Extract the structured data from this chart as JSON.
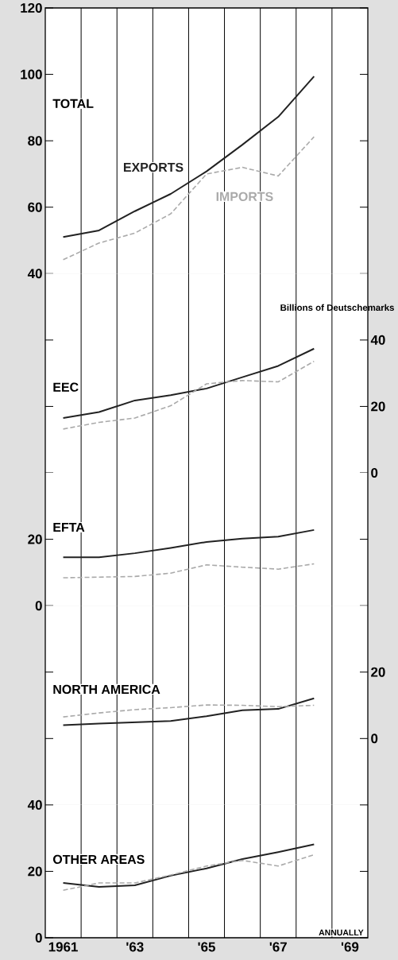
{
  "chart_data": [
    {
      "type": "line",
      "title": "TOTAL",
      "categories": [
        null,
        null,
        null,
        null,
        null,
        null,
        null,
        null,
        null
      ],
      "ylim": [
        40,
        120
      ],
      "yticks": [
        40,
        60,
        80,
        100,
        120
      ],
      "grid": "x",
      "tick_labels": "y",
      "series": [
        {
          "name": "EXPORTS",
          "color": "#222222",
          "line_style": "solid",
          "values": [
            51,
            53,
            58.8,
            64,
            70.8,
            78.8,
            87.2,
            99.4,
            null
          ]
        },
        {
          "name": "IMPORTS",
          "color": "#aaaaaa",
          "line_style": "dashed",
          "values": [
            44.2,
            49.2,
            52.2,
            58,
            70,
            72,
            69.4,
            81.2,
            null
          ]
        }
      ]
    },
    {
      "type": "line",
      "title": "EEC",
      "ylabel": "Billions of Deutschemarks",
      "categories": [
        null,
        null,
        null,
        null,
        null,
        null,
        null,
        null,
        null
      ],
      "ylim": [
        0,
        60
      ],
      "yticks": [
        0,
        20,
        40
      ],
      "grid": "x",
      "tick_labels": "y",
      "series": [
        {
          "color": "#222222",
          "line_style": "solid",
          "values": [
            16.5,
            18.3,
            21.8,
            23.4,
            25.4,
            28.8,
            32.2,
            37.4,
            null
          ]
        },
        {
          "color": "#aaaaaa",
          "line_style": "dashed",
          "values": [
            13.2,
            15.2,
            16.5,
            20.2,
            26.8,
            27.8,
            27.4,
            33.6,
            null
          ]
        }
      ]
    },
    {
      "type": "line",
      "title": "EFTA",
      "categories": [
        null,
        null,
        null,
        null,
        null,
        null,
        null,
        null,
        null
      ],
      "ylim": [
        0,
        40
      ],
      "yticks": [
        0,
        20
      ],
      "grid": "x",
      "tick_labels": "y",
      "series": [
        {
          "color": "#222222",
          "line_style": "solid",
          "values": [
            14.6,
            14.6,
            15.8,
            17.4,
            19.2,
            20.2,
            20.8,
            22.8,
            null
          ]
        },
        {
          "color": "#aaaaaa",
          "line_style": "dashed",
          "values": [
            8.4,
            8.6,
            8.8,
            9.8,
            12.3,
            11.6,
            11,
            12.6,
            null
          ]
        }
      ]
    },
    {
      "type": "line",
      "title": "NORTH AMERICA",
      "categories": [
        null,
        null,
        null,
        null,
        null,
        null,
        null,
        null,
        null
      ],
      "ylim": [
        -20,
        40
      ],
      "yticks": [
        0,
        20
      ],
      "grid": "x",
      "tick_labels": "y",
      "series": [
        {
          "color": "#222222",
          "line_style": "solid",
          "values": [
            4,
            4.5,
            4.9,
            5.3,
            6.7,
            8.5,
            8.9,
            12.1,
            null
          ]
        },
        {
          "color": "#aaaaaa",
          "line_style": "dashed",
          "values": [
            6.5,
            7.7,
            8.7,
            9.3,
            10.1,
            10,
            9.6,
            10,
            null
          ]
        }
      ]
    },
    {
      "type": "line",
      "title": "OTHER AREAS",
      "annotations": [
        "ANNUALLY"
      ],
      "categories": [
        "1961",
        null,
        "'63",
        null,
        "'65",
        null,
        "'67",
        null,
        "'69"
      ],
      "ylim": [
        0,
        40
      ],
      "yticks": [
        0,
        20,
        40
      ],
      "grid": "x",
      "series": [
        {
          "color": "#222222",
          "line_style": "solid",
          "values": [
            16.5,
            15.3,
            15.8,
            18.7,
            20.9,
            23.7,
            25.8,
            28.1,
            null
          ]
        },
        {
          "color": "#aaaaaa",
          "line_style": "dashed",
          "values": [
            14.3,
            16.5,
            16.5,
            18.9,
            21.6,
            23.3,
            21.6,
            25,
            null
          ]
        }
      ]
    }
  ]
}
